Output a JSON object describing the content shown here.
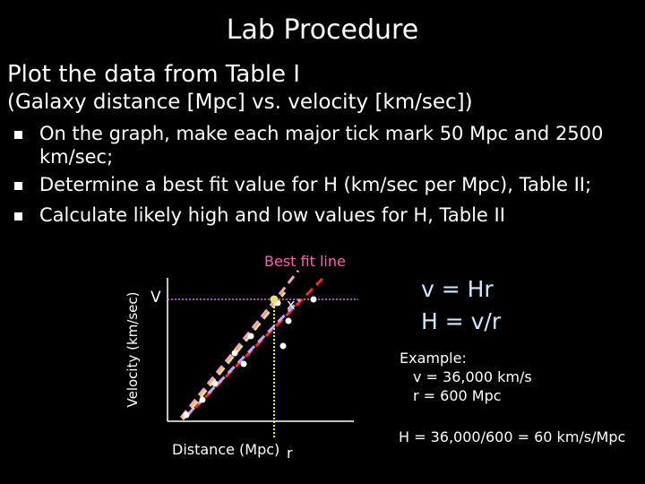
{
  "title": "Lab Procedure",
  "heading": "Plot the data from Table I",
  "subheading": "(Galaxy distance [Mpc] vs. velocity [km/sec])",
  "bullets": [
    "On the graph, make each major tick mark 50 Mpc and 2500 km/sec;",
    "Determine a best fit value for H (km/sec per Mpc), Table II;",
    "Calculate likely high and low values for H, Table II"
  ],
  "graph": {
    "best_fit_label": "Best fit line",
    "y_axis_label": "Velocity (km/sec)",
    "v_label": "V",
    "x_axis_label": "Distance (Mpc)",
    "r_label": "r",
    "marker_label": "x"
  },
  "formulas": [
    "v = Hr",
    "H = v/r"
  ],
  "example": {
    "title": "Example:",
    "v_line": "v = 36,000 km/s",
    "r_line": "r = 600 Mpc",
    "result": "H = 36,000/600 = 60 km/s/Mpc"
  },
  "colors": {
    "background": "#000000",
    "text": "#ffffff",
    "best_fit": "#ff5fb0",
    "high_fit": "#ff2a2a",
    "low_fit": "#c6a4ff",
    "guide": "#e8e070",
    "formula": "#cfe8ff"
  }
}
